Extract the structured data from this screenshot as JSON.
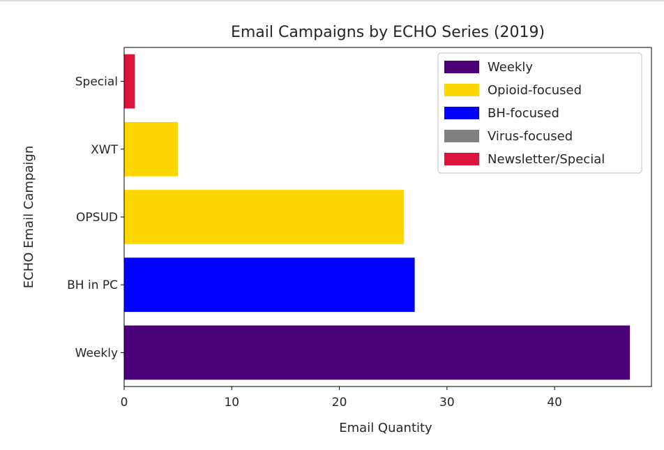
{
  "chart_data": {
    "type": "bar",
    "orientation": "horizontal",
    "title": "Email Campaigns by ECHO Series (2019)",
    "xlabel": "Email Quantity",
    "ylabel": "ECHO Email Campaign",
    "xlim": [
      0,
      49
    ],
    "x_ticks": [
      "0",
      "10",
      "20",
      "30",
      "40"
    ],
    "categories": [
      "Weekly",
      "BH in PC",
      "OPSUD",
      "XWT",
      "Special"
    ],
    "values": [
      47,
      27,
      26,
      5,
      1
    ],
    "bar_colors": [
      "#4b0079",
      "#0000ff",
      "#ffd700",
      "#ffd700",
      "#dc143c"
    ],
    "grid": false,
    "legend": {
      "placement": "top-right",
      "entries": [
        {
          "label": "Weekly",
          "color": "#4b0079"
        },
        {
          "label": "Opioid-focused",
          "color": "#ffd700"
        },
        {
          "label": "BH-focused",
          "color": "#0000ff"
        },
        {
          "label": "Virus-focused",
          "color": "#808080"
        },
        {
          "label": "Newsletter/Special",
          "color": "#dc143c"
        }
      ]
    }
  }
}
